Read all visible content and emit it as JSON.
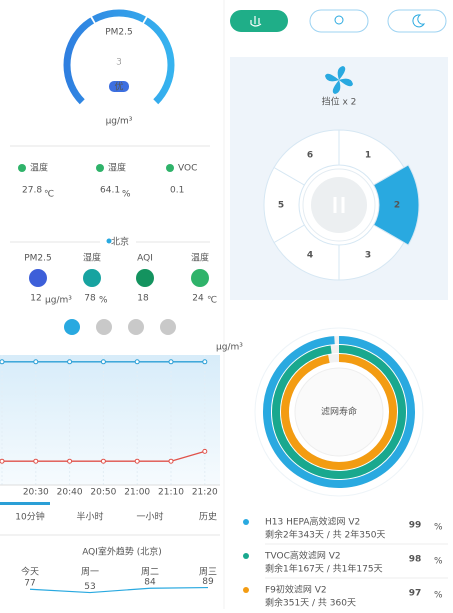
{
  "gauge": {
    "label": "PM2.5",
    "value": 3,
    "level": "优",
    "unit": "μg/m³"
  },
  "indoor": [
    {
      "label": "温度",
      "value": 27.8,
      "unit": "℃"
    },
    {
      "label": "湿度",
      "value": 64.1,
      "unit": "%"
    },
    {
      "label": "VOC",
      "value": 0.1
    }
  ],
  "location": "北京",
  "outdoor": [
    {
      "label": "PM2.5",
      "value": 12,
      "unit": "μg/m³",
      "color": "#3d5fd9"
    },
    {
      "label": "湿度",
      "value": 78,
      "unit": "%",
      "color": "#17a3a0"
    },
    {
      "label": "AQI",
      "value": 18,
      "color": "#14935f"
    },
    {
      "label": "温度",
      "value": 24,
      "unit": "℃",
      "color": "#2fb36a"
    }
  ],
  "history_chart": {
    "type": "line",
    "unit": "μg/m³",
    "x": [
      null,
      "20:30",
      "20:40",
      "20:50",
      "21:00",
      "21:10",
      "21:20"
    ],
    "series": [
      {
        "color": "#2a9fd6",
        "values": [
          88,
          88,
          88,
          88,
          88,
          88,
          88
        ]
      },
      {
        "color": "#e0524a",
        "values": [
          17,
          17,
          17,
          17,
          17,
          17,
          24
        ]
      }
    ],
    "ylim": [
      0,
      100
    ]
  },
  "tabs": {
    "items": [
      "10分钟",
      "半小时",
      "一小时",
      "历史"
    ],
    "selected": 0
  },
  "aqi_trend": {
    "type": "line",
    "title": "AQI室外趋势 (北京)",
    "categories": [
      "今天",
      "周一",
      "周二",
      "周三"
    ],
    "values": [
      77,
      53,
      84,
      89
    ],
    "ylim": [
      0,
      100
    ]
  },
  "fan": {
    "label": "挡位 x 2",
    "speeds": [
      1,
      2,
      3,
      4,
      5,
      6
    ],
    "selected": 2
  },
  "filters": {
    "title": "滤网寿命",
    "items": [
      {
        "name": "H13 HEPA高效滤网 V2",
        "remaining": "剩余2年343天 / 共 2年350天",
        "percent": 99,
        "unit": "%",
        "color": "#29a9e0"
      },
      {
        "name": "TVOC高效滤网 V2",
        "remaining": "剩余1年167天 / 共1年175天",
        "percent": 98,
        "unit": "%",
        "color": "#19a88e"
      },
      {
        "name": "F9初效滤网 V2",
        "remaining": "剩余351天 / 共 360天",
        "percent": 97,
        "unit": "%",
        "color": "#f39c12"
      }
    ]
  }
}
